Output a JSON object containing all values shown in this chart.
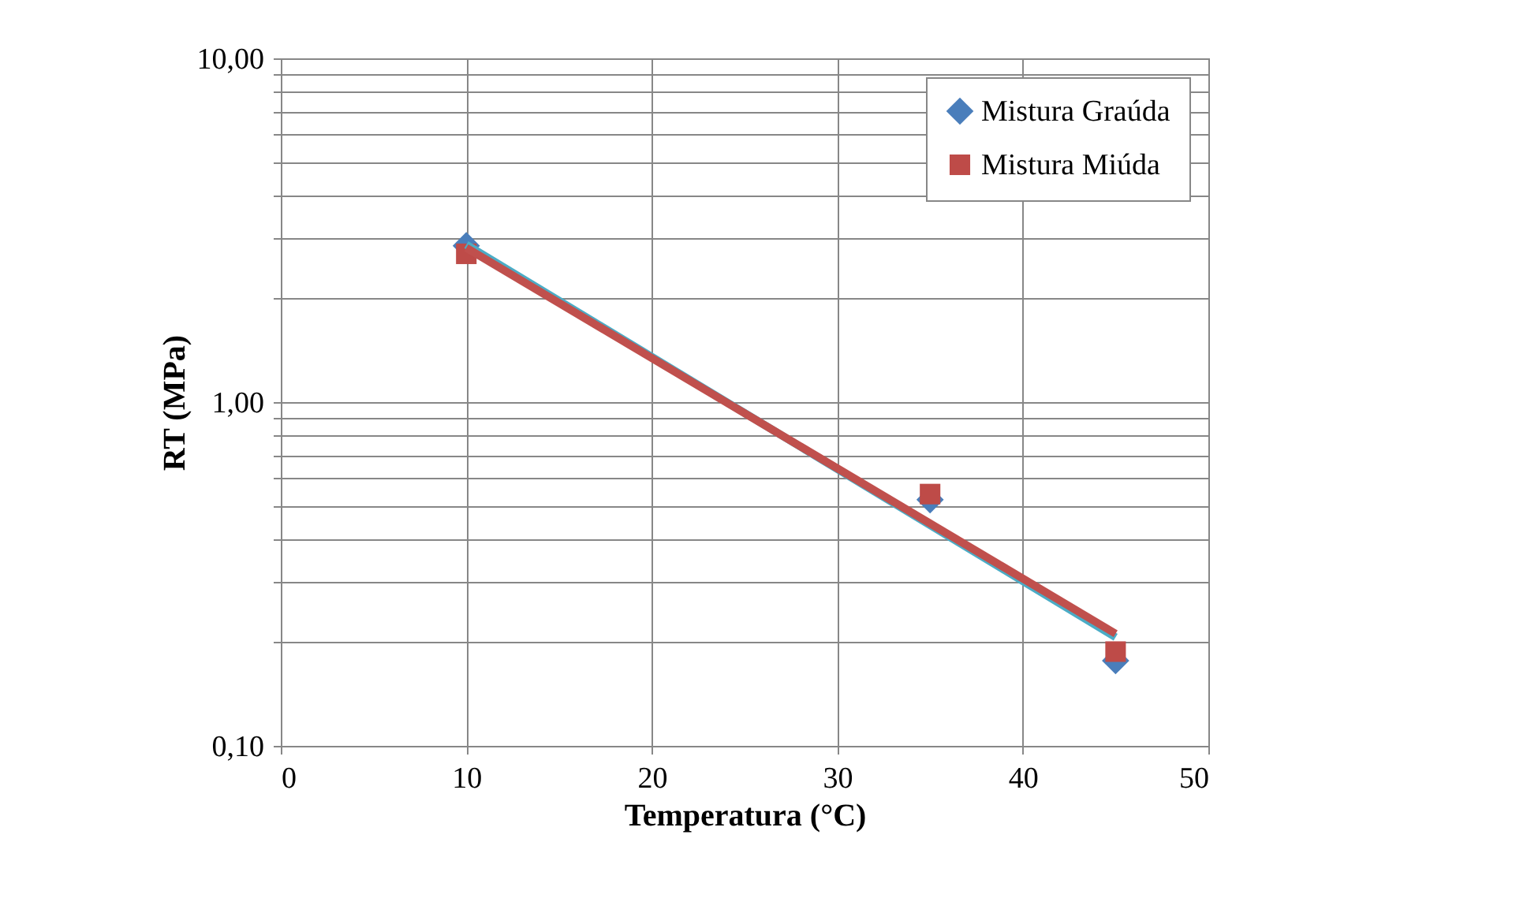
{
  "chart_data": {
    "type": "scatter",
    "xlabel": "Temperatura (°C)",
    "ylabel": "RT (MPa)",
    "log": "y",
    "grid": true,
    "legend": "top right",
    "xlim": [
      0,
      50
    ],
    "xticks": [
      0,
      10,
      20,
      30,
      40,
      50
    ],
    "ylim": [
      0.1,
      10
    ],
    "yticks": [
      {
        "value": 0.1,
        "label": "0,10"
      },
      {
        "value": 0.2,
        "label": null
      },
      {
        "value": 0.3,
        "label": null
      },
      {
        "value": 0.4,
        "label": null
      },
      {
        "value": 0.5,
        "label": null
      },
      {
        "value": 0.6,
        "label": null
      },
      {
        "value": 0.7,
        "label": null
      },
      {
        "value": 0.8,
        "label": null
      },
      {
        "value": 0.9,
        "label": null
      },
      {
        "value": 1,
        "label": "1,00"
      },
      {
        "value": 2,
        "label": null
      },
      {
        "value": 3,
        "label": null
      },
      {
        "value": 4,
        "label": null
      },
      {
        "value": 5,
        "label": null
      },
      {
        "value": 6,
        "label": null
      },
      {
        "value": 7,
        "label": null
      },
      {
        "value": 8,
        "label": null
      },
      {
        "value": 9,
        "label": null
      },
      {
        "value": 10,
        "label": "10,00"
      }
    ],
    "series": [
      {
        "name": "Mistura Graúda",
        "marker": "diamond",
        "color": "#4a7ebb",
        "x": [
          10,
          35,
          45
        ],
        "values": [
          2.85,
          0.52,
          0.177
        ]
      },
      {
        "name": "Mistura Miúda",
        "marker": "square",
        "color": "#be4b48",
        "x": [
          10,
          35,
          45
        ],
        "values": [
          2.7,
          0.54,
          0.188
        ]
      },
      {
        "type": "line",
        "color": "#4bacc6",
        "x": [
          10,
          45
        ],
        "values": [
          2.87,
          0.207
        ]
      },
      {
        "type": "line",
        "color": "#c0504d",
        "x": [
          10,
          45
        ],
        "values": [
          2.81,
          0.212
        ]
      }
    ]
  }
}
